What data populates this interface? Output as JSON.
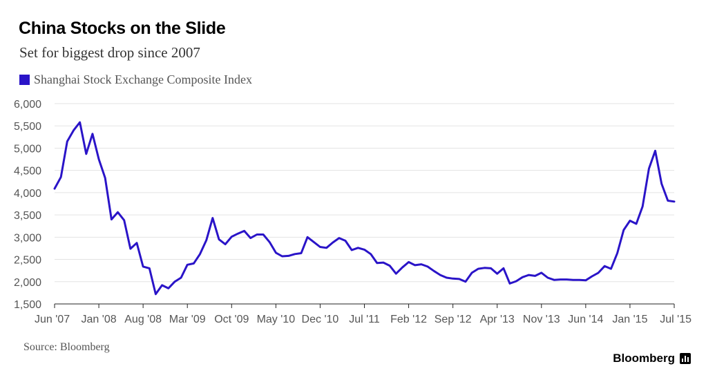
{
  "chart_data": {
    "type": "line",
    "title": "China Stocks on the Slide",
    "subtitle": "Set for biggest drop since 2007",
    "source": "Source: Bloomberg",
    "brand": "Bloomberg",
    "xlabel": "",
    "ylabel": "",
    "ylim": [
      1500,
      6000
    ],
    "xlim": [
      0,
      98
    ],
    "grid": true,
    "legend_position": "top-left",
    "y_ticks": [
      1500,
      2000,
      2500,
      3000,
      3500,
      4000,
      4500,
      5000,
      5500,
      6000
    ],
    "y_tick_labels": [
      "1,500",
      "2,000",
      "2,500",
      "3,000",
      "3,500",
      "4,000",
      "4,500",
      "5,000",
      "5,500",
      "6,000"
    ],
    "x_ticks": [
      {
        "index": 0,
        "label": "Jun '07"
      },
      {
        "index": 7,
        "label": "Jan '08"
      },
      {
        "index": 14,
        "label": "Aug '08"
      },
      {
        "index": 21,
        "label": "Mar '09"
      },
      {
        "index": 28,
        "label": "Oct '09"
      },
      {
        "index": 35,
        "label": "May '10"
      },
      {
        "index": 42,
        "label": "Dec '10"
      },
      {
        "index": 49,
        "label": "Jul '11"
      },
      {
        "index": 56,
        "label": "Feb '12"
      },
      {
        "index": 63,
        "label": "Sep '12"
      },
      {
        "index": 70,
        "label": "Apr '13"
      },
      {
        "index": 77,
        "label": "Nov '13"
      },
      {
        "index": 84,
        "label": "Jun '14"
      },
      {
        "index": 91,
        "label": "Jan '15"
      },
      {
        "index": 98,
        "label": "Jul '15"
      }
    ],
    "colors": {
      "line": "#2a14c8",
      "grid": "#e3e3e3",
      "axis": "#222222"
    },
    "series": [
      {
        "name": "Shanghai Stock Exchange Composite Index",
        "color": "#2a14c8",
        "x": [
          0,
          1,
          2,
          3,
          4,
          5,
          6,
          7,
          8,
          9,
          10,
          11,
          12,
          13,
          14,
          15,
          16,
          17,
          18,
          19,
          20,
          21,
          22,
          23,
          24,
          25,
          26,
          27,
          28,
          29,
          30,
          31,
          32,
          33,
          34,
          35,
          36,
          37,
          38,
          39,
          40,
          41,
          42,
          43,
          44,
          45,
          46,
          47,
          48,
          49,
          50,
          51,
          52,
          53,
          54,
          55,
          56,
          57,
          58,
          59,
          60,
          61,
          62,
          63,
          64,
          65,
          66,
          67,
          68,
          69,
          70,
          71,
          72,
          73,
          74,
          75,
          76,
          77,
          78,
          79,
          80,
          81,
          82,
          83,
          84,
          85,
          86,
          87,
          88,
          89,
          90,
          91,
          92,
          93,
          94,
          95,
          96,
          97,
          98
        ],
        "values": [
          4090,
          4350,
          5150,
          5400,
          5580,
          4870,
          5320,
          4750,
          4330,
          3400,
          3560,
          3380,
          2740,
          2870,
          2340,
          2300,
          1720,
          1920,
          1850,
          2000,
          2090,
          2380,
          2410,
          2620,
          2930,
          3430,
          2950,
          2840,
          3010,
          3080,
          3140,
          2980,
          3060,
          3060,
          2890,
          2650,
          2570,
          2580,
          2620,
          2640,
          3000,
          2890,
          2780,
          2760,
          2880,
          2980,
          2920,
          2710,
          2760,
          2720,
          2620,
          2420,
          2430,
          2360,
          2180,
          2320,
          2440,
          2370,
          2390,
          2340,
          2240,
          2150,
          2090,
          2070,
          2060,
          2000,
          2200,
          2290,
          2310,
          2300,
          2180,
          2300,
          1960,
          2010,
          2100,
          2150,
          2130,
          2200,
          2090,
          2040,
          2050,
          2050,
          2040,
          2040,
          2030,
          2120,
          2200,
          2350,
          2290,
          2640,
          3160,
          3370,
          3300,
          3690,
          4540,
          4940,
          4200,
          3820,
          3800
        ]
      }
    ]
  }
}
